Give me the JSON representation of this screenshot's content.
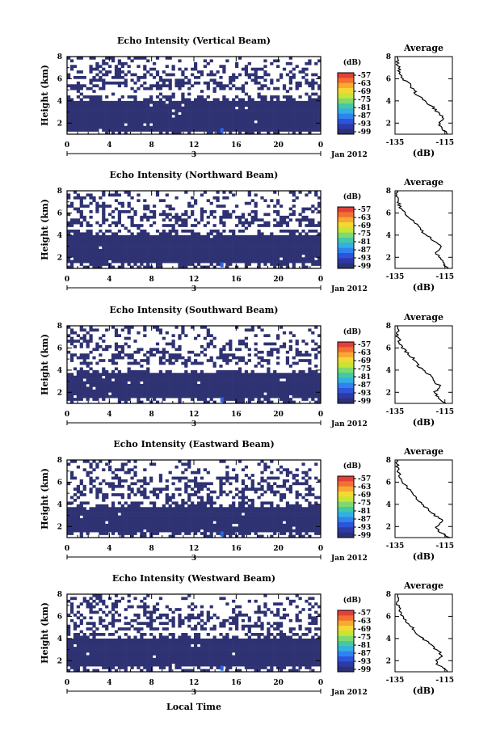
{
  "figure": {
    "x_axis_title": "Local Time",
    "colorbar_unit": "(dB)",
    "colorbar_ticks": [
      "-57",
      "-63",
      "-69",
      "-75",
      "-81",
      "-87",
      "-93",
      "-99"
    ],
    "colorbar_colors": [
      "#e2403a",
      "#f3712f",
      "#f8a833",
      "#f3d833",
      "#c6e539",
      "#7fd970",
      "#44c8a6",
      "#33b0e1",
      "#2f82f0",
      "#2e55d9",
      "#2d3aa7",
      "#2b3175"
    ],
    "background_color": "#ffffff",
    "low_echo_color": "#2e3273",
    "strong_echo_color": "#2d63e6"
  },
  "panels": [
    {
      "title": "Echo Intensity (Vertical Beam)",
      "ylabel": "Height (km)",
      "yticks": [
        "2",
        "4",
        "6",
        "8"
      ],
      "xticks": [
        "0",
        "4",
        "8",
        "12",
        "16",
        "20",
        "0"
      ],
      "date_index": "3",
      "date_label": "Jan 2012",
      "avg_title": "Average",
      "avg_xticks": [
        "-135",
        "-115"
      ],
      "avg_yticks": [
        "2",
        "4",
        "6",
        "8"
      ],
      "avg_unit": "(dB)"
    },
    {
      "title": "Echo Intensity (Northward Beam)",
      "ylabel": "Height (km)",
      "yticks": [
        "2",
        "4",
        "6",
        "8"
      ],
      "xticks": [
        "0",
        "4",
        "8",
        "12",
        "16",
        "20",
        "0"
      ],
      "date_index": "3",
      "date_label": "Jan 2012",
      "avg_title": "Average",
      "avg_xticks": [
        "-135",
        "-115"
      ],
      "avg_yticks": [
        "2",
        "4",
        "6",
        "8"
      ],
      "avg_unit": "(dB)"
    },
    {
      "title": "Echo Intensity (Southward Beam)",
      "ylabel": "Height (km)",
      "yticks": [
        "2",
        "4",
        "6",
        "8"
      ],
      "xticks": [
        "0",
        "4",
        "8",
        "12",
        "16",
        "20",
        "0"
      ],
      "date_index": "3",
      "date_label": "Jan 2012",
      "avg_title": "Average",
      "avg_xticks": [
        "-135",
        "-115"
      ],
      "avg_yticks": [
        "2",
        "4",
        "6",
        "8"
      ],
      "avg_unit": "(dB)"
    },
    {
      "title": "Echo Intensity (Eastward Beam)",
      "ylabel": "Height (km)",
      "yticks": [
        "2",
        "4",
        "6",
        "8"
      ],
      "xticks": [
        "0",
        "4",
        "8",
        "12",
        "16",
        "20",
        "0"
      ],
      "date_index": "3",
      "date_label": "Jan 2012",
      "avg_title": "Average",
      "avg_xticks": [
        "-135",
        "-115"
      ],
      "avg_yticks": [
        "2",
        "4",
        "6",
        "8"
      ],
      "avg_unit": "(dB)"
    },
    {
      "title": "Echo Intensity (Westward Beam)",
      "ylabel": "Height (km)",
      "yticks": [
        "2",
        "4",
        "6",
        "8"
      ],
      "xticks": [
        "0",
        "4",
        "8",
        "12",
        "16",
        "20",
        "0"
      ],
      "date_index": "3",
      "date_label": "Jan 2012",
      "avg_title": "Average",
      "avg_xticks": [
        "-135",
        "-115"
      ],
      "avg_yticks": [
        "2",
        "4",
        "6",
        "8"
      ],
      "avg_unit": "(dB)"
    }
  ],
  "chart_data": [
    {
      "type": "heatmap",
      "title": "Echo Intensity (Vertical Beam)",
      "ylabel": "Height (km)",
      "xlim": [
        0,
        24
      ],
      "ylim": [
        1,
        8
      ],
      "colorbar_range_db": [
        -99,
        -57
      ],
      "dense_layer_km": [
        1.3,
        4.0
      ],
      "cloud_band_km": [
        5.0,
        6.5
      ],
      "scattered_echo_above_km": 6.5,
      "average_profile": {
        "xlim": [
          -135,
          -112
        ],
        "ylim": [
          1,
          8
        ],
        "height_km": [
          1.0,
          1.5,
          2.0,
          2.5,
          3.0,
          3.5,
          4.0,
          4.5,
          5.0,
          5.5,
          6.0,
          6.5,
          7.0,
          7.5,
          8.0
        ],
        "avg_db": [
          -114,
          -116,
          -117.5,
          -115.5,
          -118,
          -120,
          -123,
          -126,
          -127.5,
          -129,
          -132,
          -133,
          -133.5,
          -134,
          -134
        ]
      }
    },
    {
      "type": "heatmap",
      "title": "Echo Intensity (Northward Beam)",
      "ylabel": "Height (km)",
      "xlim": [
        0,
        24
      ],
      "ylim": [
        1,
        8
      ],
      "colorbar_range_db": [
        -99,
        -57
      ],
      "dense_layer_km": [
        1.4,
        4.0
      ],
      "cloud_band_km": [
        4.8,
        6.3
      ],
      "scattered_echo_above_km": 6.3,
      "average_profile": {
        "xlim": [
          -135,
          -112
        ],
        "ylim": [
          1,
          8
        ],
        "height_km": [
          1.0,
          1.5,
          2.0,
          2.5,
          3.0,
          3.5,
          4.0,
          4.5,
          5.0,
          5.5,
          6.0,
          6.5,
          7.0,
          7.5,
          8.0
        ],
        "avg_db": [
          -113.5,
          -116,
          -117,
          -118.5,
          -116,
          -119.5,
          -122,
          -125,
          -126.5,
          -129,
          -131.5,
          -133,
          -133.5,
          -134,
          -134
        ]
      }
    },
    {
      "type": "heatmap",
      "title": "Echo Intensity (Southward Beam)",
      "ylabel": "Height (km)",
      "xlim": [
        0,
        24
      ],
      "ylim": [
        1,
        8
      ],
      "colorbar_range_db": [
        -99,
        -57
      ],
      "dense_layer_km": [
        1.6,
        3.7
      ],
      "cloud_band_km": [
        4.5,
        6.0
      ],
      "scattered_echo_above_km": 6.0,
      "average_profile": {
        "xlim": [
          -135,
          -112
        ],
        "ylim": [
          1,
          8
        ],
        "height_km": [
          1.0,
          1.5,
          2.0,
          2.5,
          3.0,
          3.5,
          4.0,
          4.5,
          5.0,
          5.5,
          6.0,
          6.5,
          7.0,
          7.5,
          8.0
        ],
        "avg_db": [
          -114.5,
          -118,
          -119,
          -116.5,
          -119.5,
          -121,
          -124,
          -126,
          -127.5,
          -130,
          -132,
          -133,
          -134,
          -134,
          -134
        ]
      }
    },
    {
      "type": "heatmap",
      "title": "Echo Intensity (Eastward Beam)",
      "ylabel": "Height (km)",
      "xlim": [
        0,
        24
      ],
      "ylim": [
        1,
        8
      ],
      "colorbar_range_db": [
        -99,
        -57
      ],
      "dense_layer_km": [
        1.5,
        3.8
      ],
      "cloud_band_km": [
        4.6,
        6.4
      ],
      "scattered_echo_above_km": 6.4,
      "average_profile": {
        "xlim": [
          -135,
          -112
        ],
        "ylim": [
          1,
          8
        ],
        "height_km": [
          1.0,
          1.5,
          2.0,
          2.5,
          3.0,
          3.5,
          4.0,
          4.5,
          5.0,
          5.5,
          6.0,
          6.5,
          7.0,
          7.5,
          8.0
        ],
        "avg_db": [
          -113,
          -117,
          -118.5,
          -116,
          -119,
          -121.5,
          -124,
          -126,
          -128,
          -130,
          -132,
          -133,
          -134,
          -134,
          -134
        ]
      }
    },
    {
      "type": "heatmap",
      "title": "Echo Intensity (Westward Beam)",
      "ylabel": "Height (km)",
      "xlim": [
        0,
        24
      ],
      "ylim": [
        1,
        8
      ],
      "colorbar_range_db": [
        -99,
        -57
      ],
      "dense_layer_km": [
        1.5,
        4.0
      ],
      "cloud_band_km": [
        4.8,
        6.2
      ],
      "scattered_echo_above_km": 6.2,
      "average_profile": {
        "xlim": [
          -135,
          -112
        ],
        "ylim": [
          1,
          8
        ],
        "height_km": [
          1.0,
          1.5,
          2.0,
          2.5,
          3.0,
          3.5,
          4.0,
          4.5,
          5.0,
          5.5,
          6.0,
          6.5,
          7.0,
          7.5,
          8.0
        ],
        "avg_db": [
          -114,
          -117,
          -119,
          -116,
          -118.5,
          -121,
          -124,
          -126.5,
          -128,
          -130,
          -132,
          -133,
          -134,
          -134,
          -134
        ]
      }
    }
  ]
}
